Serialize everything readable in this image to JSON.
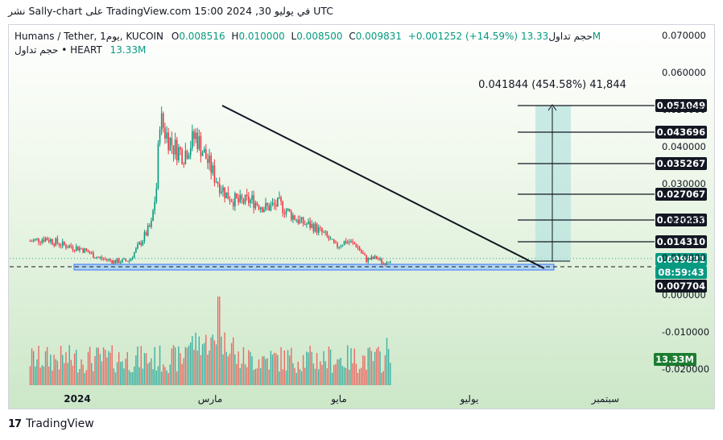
{
  "caption": "نشر Sally-chart على TradingView.com في يوليو 30, 2024 15:00 UTC",
  "legend": {
    "symbol": "Humans / Tether, 1يوم, KUCOIN",
    "o_label": "O",
    "o_value": "0.008516",
    "h_label": "H",
    "h_value": "0.010000",
    "l_label": "L",
    "l_value": "0.008500",
    "c_label": "C",
    "c_value": "0.009831",
    "change": "+0.001252 (+14.59%)",
    "volume_label": "حجم تداول",
    "volume_value": "13.33M",
    "line2_label": "حجم تداول • HEART",
    "line2_value": "13.33M"
  },
  "brand": {
    "logo": "17",
    "name": "TradingView"
  },
  "colors": {
    "up": "#089981",
    "down": "#f23645",
    "vol_up": "#26a69a",
    "vol_down": "#ef5350",
    "trendline": "#131722",
    "support_fill": "#a9d2f0",
    "support_border": "#2962ff",
    "projection_fill": "#b6e2de"
  },
  "chart_data": {
    "type": "candlestick",
    "x_ticks": [
      "2024",
      "مارس",
      "مايو",
      "يوليو",
      "سبتمبر"
    ],
    "y_ticks": [
      "0.070000",
      "0.060000",
      "0.050000",
      "0.040000",
      "0.030000",
      "0.020000",
      "0.010000",
      "0.000000",
      "-0.010000",
      "-0.020000"
    ],
    "ylim": [
      -0.022,
      0.072
    ],
    "target_levels": [
      "0.051049",
      "0.043696",
      "0.035267",
      "0.027067",
      "0.020233",
      "0.014310"
    ],
    "price_labels": {
      "last": "0.009831",
      "countdown": "08:59:43",
      "low_line": "0.007704",
      "volume": "13.33M"
    },
    "projection_label": "0.041844 (454.58%) 41,844",
    "series": [
      {
        "date": "2024-01-01",
        "close": 0.0145
      },
      {
        "date": "2024-01-10",
        "close": 0.0153
      },
      {
        "date": "2024-01-20",
        "close": 0.0135
      },
      {
        "date": "2024-01-31",
        "close": 0.0125
      },
      {
        "date": "2024-02-10",
        "close": 0.01
      },
      {
        "date": "2024-02-20",
        "close": 0.009
      },
      {
        "date": "2024-02-28",
        "close": 0.0093
      },
      {
        "date": "2024-03-05",
        "close": 0.0135
      },
      {
        "date": "2024-03-12",
        "close": 0.019
      },
      {
        "date": "2024-03-15",
        "close": 0.029
      },
      {
        "date": "2024-03-17",
        "close": 0.048
      },
      {
        "date": "2024-03-20",
        "close": 0.044
      },
      {
        "date": "2024-03-25",
        "close": 0.04
      },
      {
        "date": "2024-03-31",
        "close": 0.038
      },
      {
        "date": "2024-04-07",
        "close": 0.043
      },
      {
        "date": "2024-04-12",
        "close": 0.038
      },
      {
        "date": "2024-04-18",
        "close": 0.032
      },
      {
        "date": "2024-04-25",
        "close": 0.027
      },
      {
        "date": "2024-05-02",
        "close": 0.025
      },
      {
        "date": "2024-05-10",
        "close": 0.0255
      },
      {
        "date": "2024-05-18",
        "close": 0.0235
      },
      {
        "date": "2024-05-26",
        "close": 0.0245
      },
      {
        "date": "2024-06-01",
        "close": 0.022
      },
      {
        "date": "2024-06-08",
        "close": 0.0195
      },
      {
        "date": "2024-06-15",
        "close": 0.0185
      },
      {
        "date": "2024-06-22",
        "close": 0.016
      },
      {
        "date": "2024-06-28",
        "close": 0.013
      },
      {
        "date": "2024-07-04",
        "close": 0.0145
      },
      {
        "date": "2024-07-10",
        "close": 0.0135
      },
      {
        "date": "2024-07-16",
        "close": 0.0095
      },
      {
        "date": "2024-07-22",
        "close": 0.01
      },
      {
        "date": "2024-07-26",
        "close": 0.0085
      },
      {
        "date": "2024-07-30",
        "close": 0.0098
      }
    ]
  }
}
